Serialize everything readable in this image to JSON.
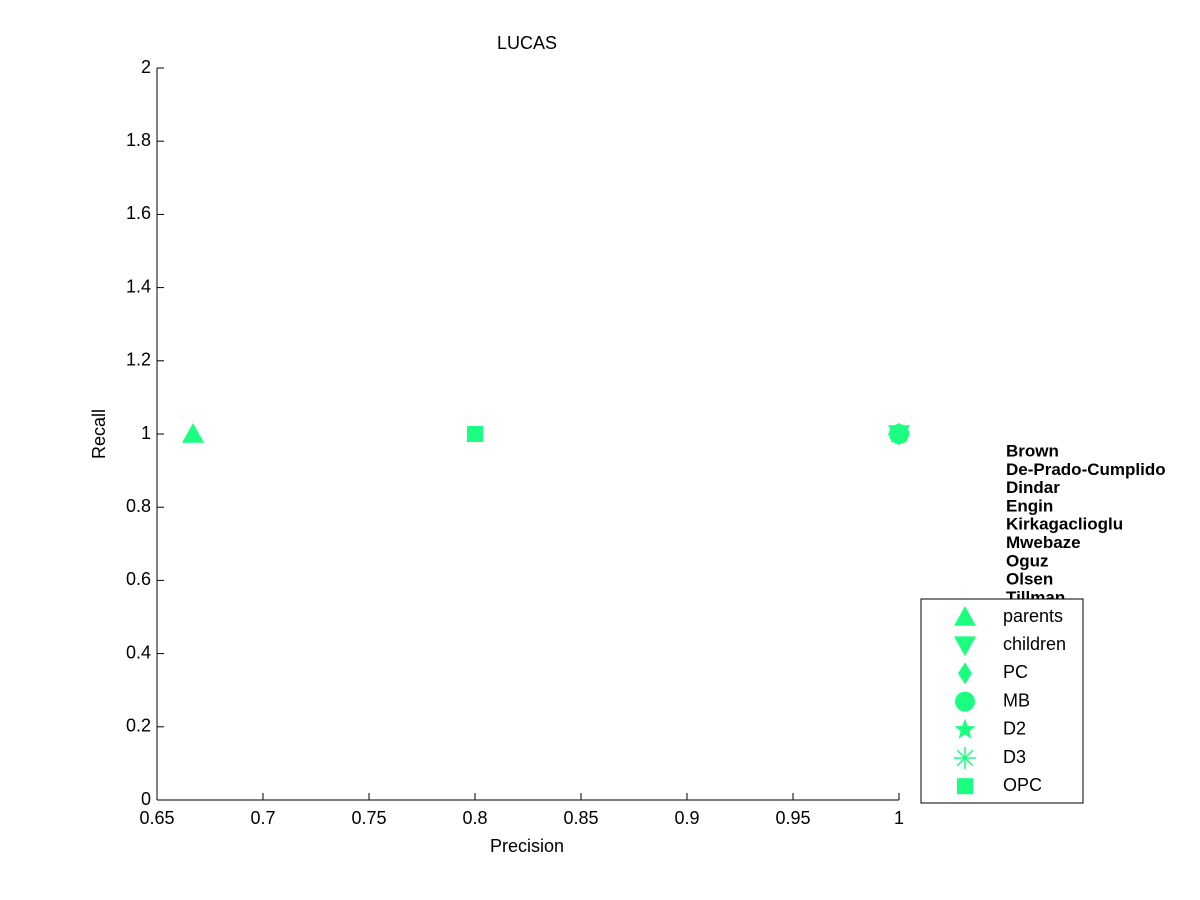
{
  "chart_data": {
    "type": "scatter",
    "title": "LUCAS",
    "x_label": "Precision",
    "y_label": "Recall",
    "xlim": [
      0.65,
      1
    ],
    "xticks": [
      0.65,
      0.7,
      0.75,
      0.8,
      0.85,
      0.9,
      0.95,
      1
    ],
    "ylim": [
      0,
      2
    ],
    "yticks": [
      0,
      0.2,
      0.4,
      0.6,
      0.8,
      1,
      1.2,
      1.4,
      1.6,
      1.8,
      2
    ],
    "grid": false,
    "series": [
      {
        "name": "parents",
        "marker": "triangle-up",
        "color": "#1aff80",
        "x": [
          0.667
        ],
        "values": [
          1
        ]
      },
      {
        "name": "children",
        "marker": "triangle-down",
        "color": "#1aff80",
        "x": [
          1
        ],
        "values": [
          1
        ]
      },
      {
        "name": "PC",
        "marker": "diamond",
        "color": "#1aff80",
        "x": [
          1
        ],
        "values": [
          1
        ]
      },
      {
        "name": "MB",
        "marker": "circle",
        "color": "#1aff80",
        "x": [
          1
        ],
        "values": [
          1
        ]
      },
      {
        "name": "D2",
        "marker": "star",
        "color": "#1aff80",
        "x": [
          1
        ],
        "values": [
          1
        ]
      },
      {
        "name": "D3",
        "marker": "asterisk",
        "color": "#1aff80",
        "x": [
          1
        ],
        "values": [
          1
        ]
      },
      {
        "name": "OPC",
        "marker": "square",
        "color": "#1aff80",
        "x": [
          0.8
        ],
        "values": [
          1
        ]
      }
    ],
    "legend_position": "lower right",
    "annotations": [
      {
        "text": "Brown",
        "color": "#e00000"
      },
      {
        "text": "De-Prado-Cumplido",
        "color": "#f08020"
      },
      {
        "text": "Dindar",
        "color": "#ffff00"
      },
      {
        "text": "Engin",
        "color": "#80ff00"
      },
      {
        "text": "Kirkagaclioglu",
        "color": "#10d010"
      },
      {
        "text": "Mwebaze",
        "color": "#10e0a0"
      },
      {
        "text": "Oguz",
        "color": "#10d0ff"
      },
      {
        "text": "Olsen",
        "color": "#0060ff"
      },
      {
        "text": "Tillman",
        "color": "#0000c0"
      }
    ]
  }
}
